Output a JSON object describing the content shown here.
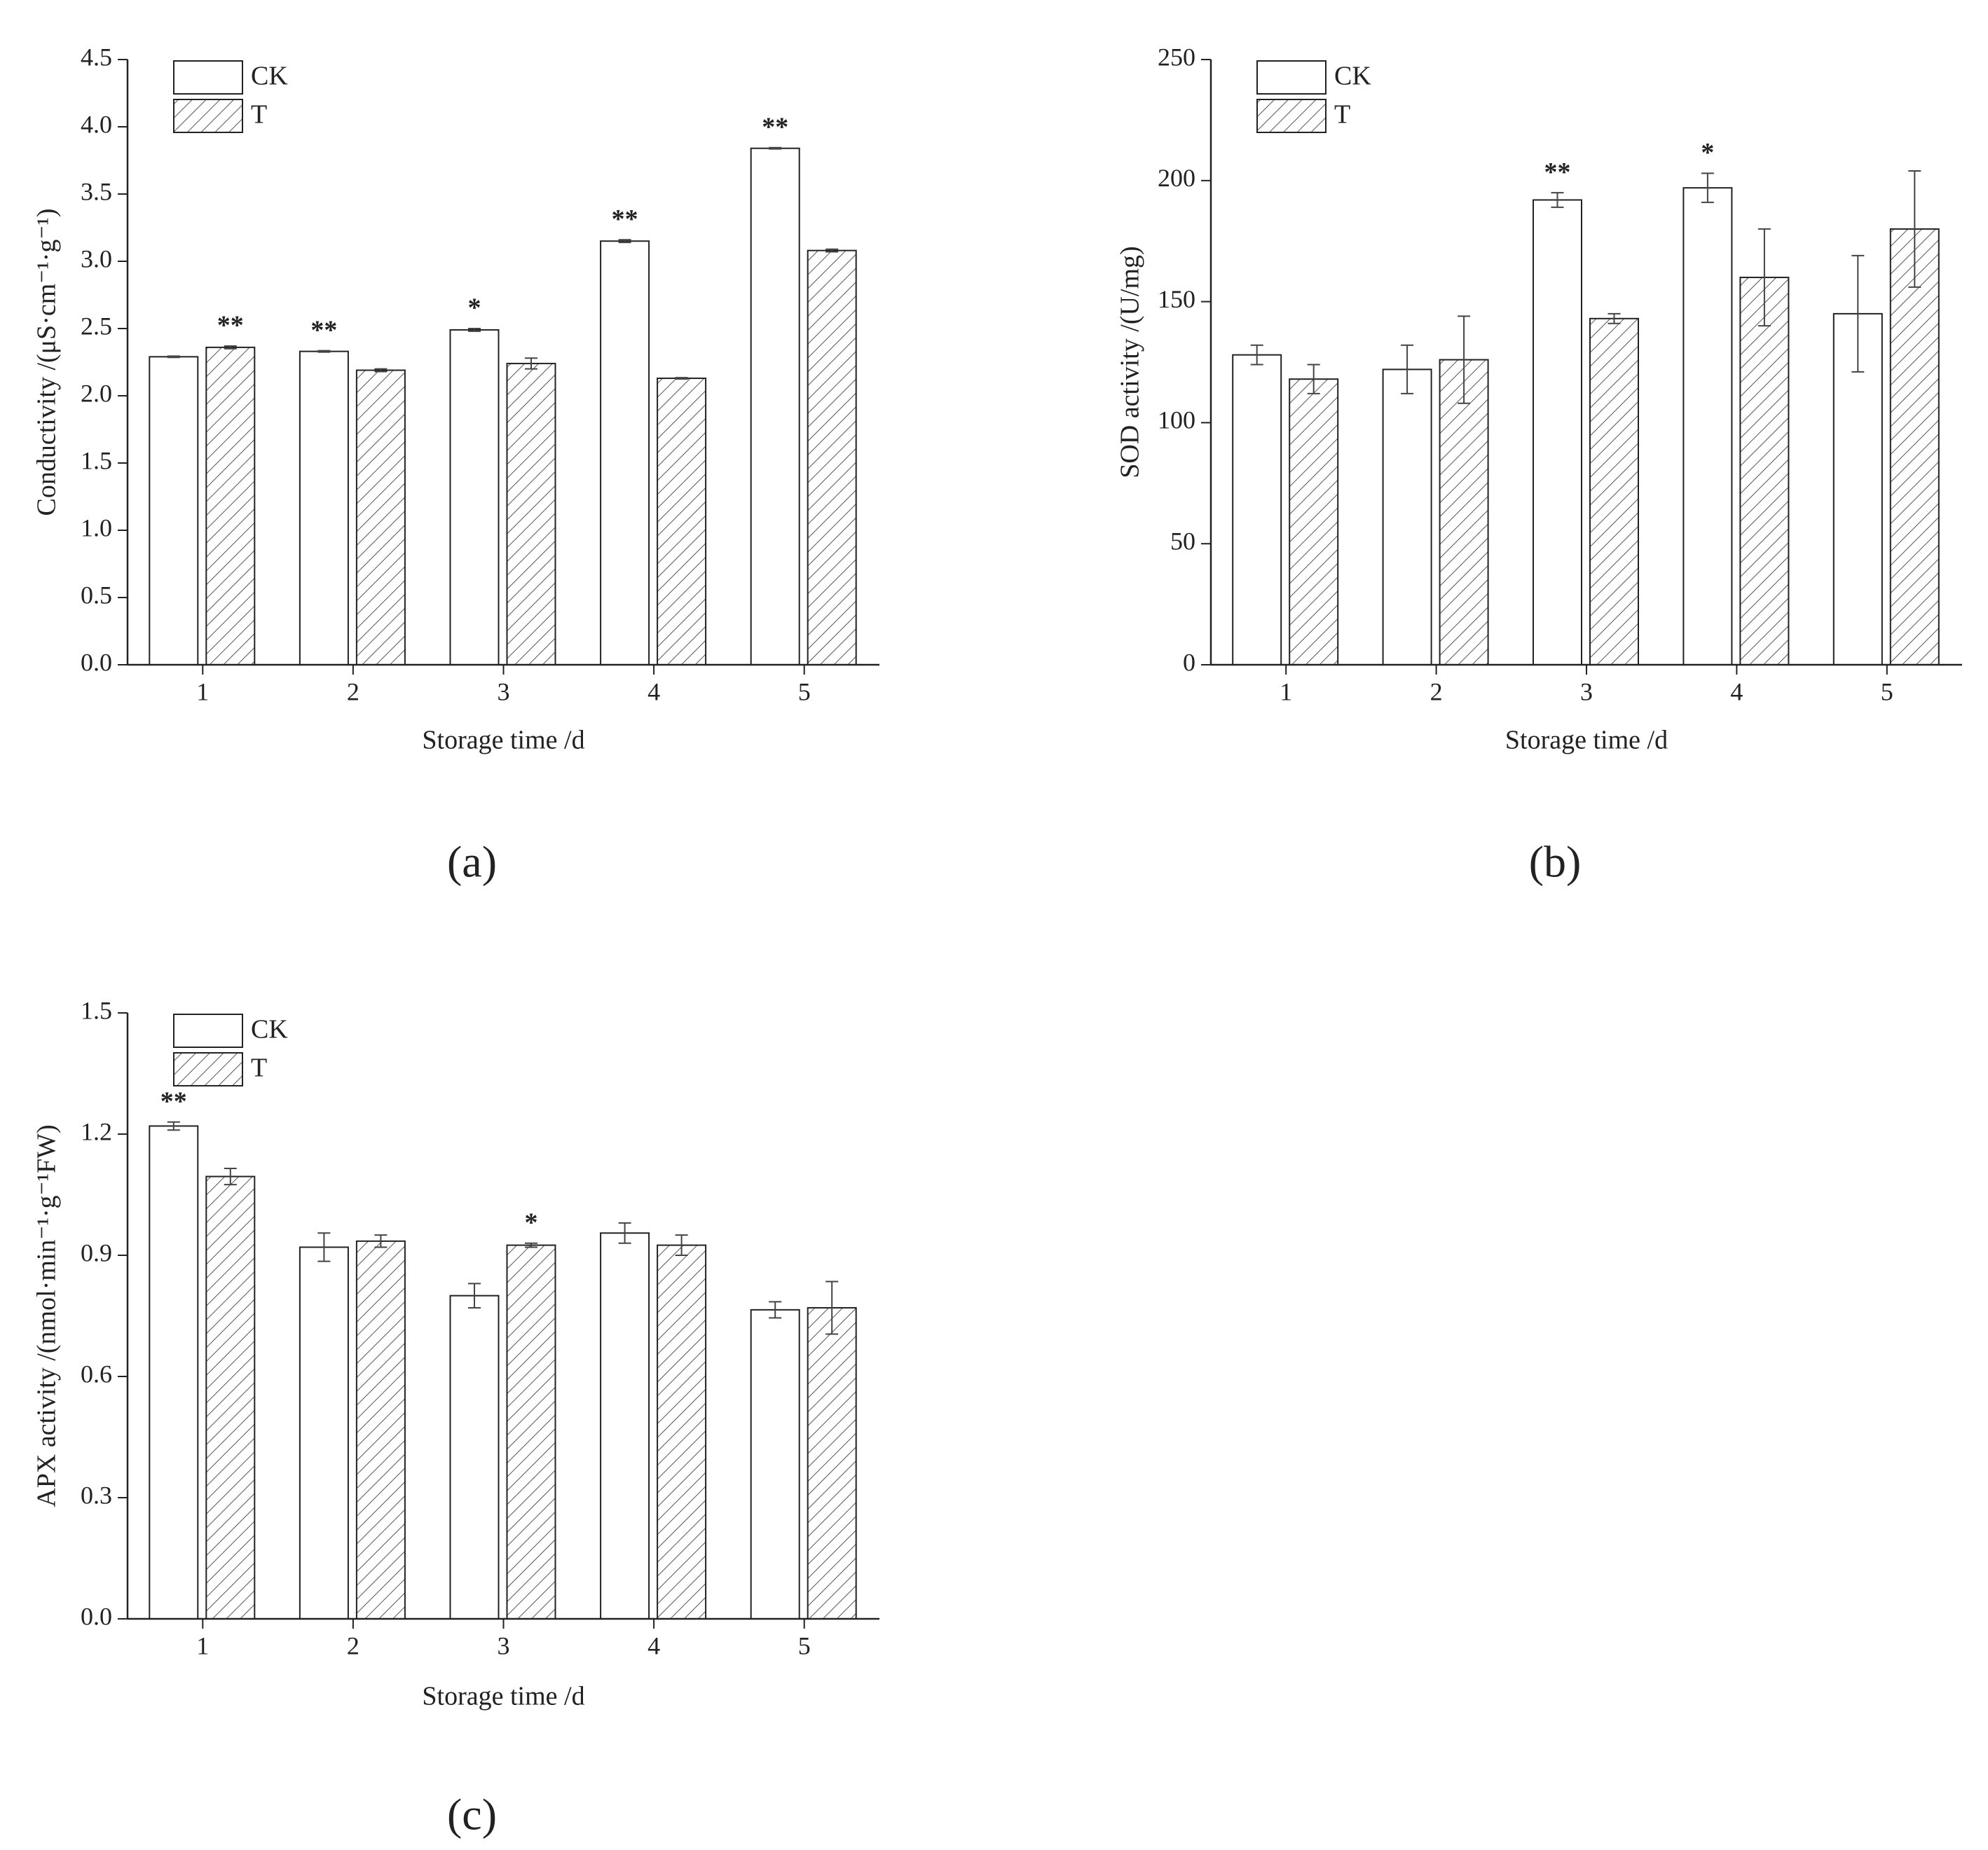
{
  "chart_data": [
    {
      "type": "bar",
      "panel_label": "(a)",
      "x_label": "Storage time /d",
      "y_label": "Conductivity /(μS·cm⁻¹·g⁻¹)",
      "categories": [
        "1",
        "2",
        "3",
        "4",
        "5"
      ],
      "series": [
        {
          "name": "CK",
          "color": "#ffffff",
          "hatch": false,
          "values": [
            2.29,
            2.33,
            2.49,
            3.15,
            3.84
          ],
          "errors": [
            0.005,
            0.005,
            0.01,
            0.01,
            0.005
          ]
        },
        {
          "name": "T",
          "color": "#555555",
          "hatch": true,
          "values": [
            2.36,
            2.19,
            2.24,
            2.13,
            3.08
          ],
          "errors": [
            0.01,
            0.01,
            0.04,
            0.005,
            0.01
          ]
        }
      ],
      "ylim": [
        0,
        4.5
      ],
      "yticks": [
        {
          "value": 0,
          "label": "0.0"
        },
        0.5,
        {
          "value": 1,
          "label": "1.0"
        },
        1.5,
        {
          "value": 2,
          "label": "2.0"
        },
        2.5,
        {
          "value": 3,
          "label": "3.0"
        },
        3.5,
        {
          "value": 4,
          "label": "4.0"
        },
        4.5
      ],
      "annotations": [
        {
          "text": "**",
          "category": "1",
          "series": "T"
        },
        {
          "text": "**",
          "category": "2",
          "series": "CK"
        },
        {
          "text": "*",
          "category": "3",
          "series": "CK"
        },
        {
          "text": "**",
          "category": "4",
          "series": "CK"
        },
        {
          "text": "**",
          "category": "5",
          "series": "CK"
        }
      ]
    },
    {
      "type": "bar",
      "panel_label": "(b)",
      "x_label": "Storage time /d",
      "y_label": "SOD activity /(U/mg)",
      "categories": [
        "1",
        "2",
        "3",
        "4",
        "5"
      ],
      "series": [
        {
          "name": "CK",
          "color": "#ffffff",
          "hatch": false,
          "values": [
            128,
            122,
            192,
            197,
            145
          ],
          "errors": [
            4,
            10,
            3,
            6,
            24
          ]
        },
        {
          "name": "T",
          "color": "#555555",
          "hatch": true,
          "values": [
            118,
            126,
            143,
            160,
            180
          ],
          "errors": [
            6,
            18,
            2,
            20,
            24
          ]
        }
      ],
      "ylim": [
        0,
        250
      ],
      "yticks": [
        0,
        50,
        100,
        150,
        200,
        250
      ],
      "annotations": [
        {
          "text": "**",
          "category": "3",
          "series": "CK"
        },
        {
          "text": "*",
          "category": "4",
          "series": "CK"
        }
      ]
    },
    {
      "type": "bar",
      "panel_label": "(c)",
      "x_label": "Storage time /d",
      "y_label": "APX activity /(nmol·min⁻¹·g⁻¹FW)",
      "categories": [
        "1",
        "2",
        "3",
        "4",
        "5"
      ],
      "series": [
        {
          "name": "CK",
          "color": "#ffffff",
          "hatch": false,
          "values": [
            1.22,
            0.92,
            0.8,
            0.955,
            0.765
          ],
          "errors": [
            0.01,
            0.035,
            0.03,
            0.025,
            0.02
          ]
        },
        {
          "name": "T",
          "color": "#555555",
          "hatch": true,
          "values": [
            1.095,
            0.935,
            0.925,
            0.925,
            0.77
          ],
          "errors": [
            0.02,
            0.015,
            0.005,
            0.025,
            0.065
          ]
        }
      ],
      "ylim": [
        0,
        1.5
      ],
      "yticks": [
        {
          "value": 0,
          "label": "0.0"
        },
        0.3,
        0.6,
        0.9,
        1.2,
        1.5
      ],
      "annotations": [
        {
          "text": "**",
          "category": "1",
          "series": "CK"
        },
        {
          "text": "*",
          "category": "3",
          "series": "T"
        }
      ]
    }
  ]
}
